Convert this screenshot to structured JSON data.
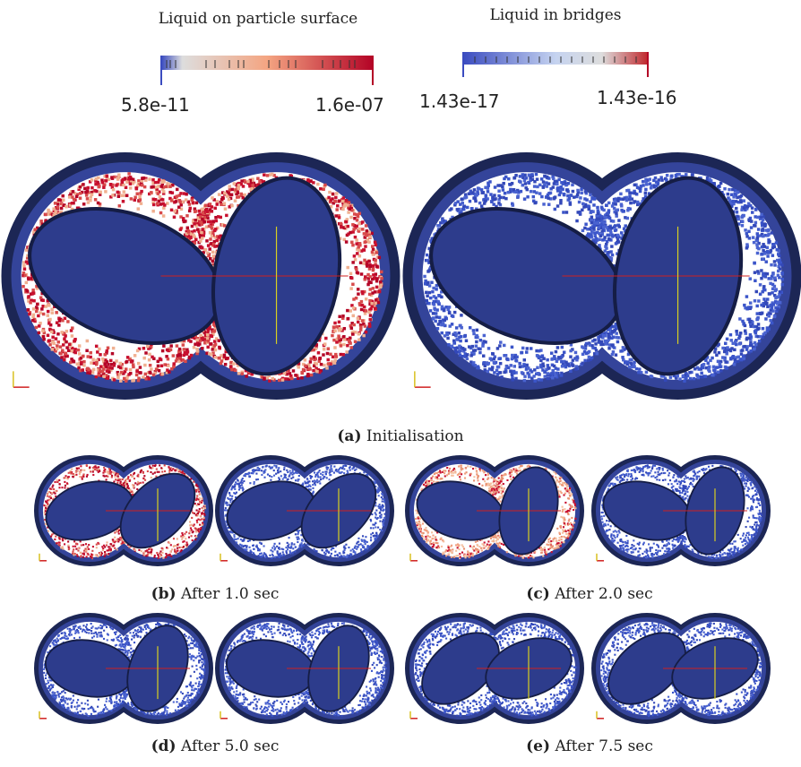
{
  "colorbars": [
    {
      "title": "Liquid on particle surface",
      "min": "5.8e-11",
      "max": "1.6e-07"
    },
    {
      "title": "Liquid in bridges",
      "min": "1.43e-17",
      "max": "1.43e-16"
    }
  ],
  "panels": [
    {
      "label": "(a)",
      "caption": "Initialisation"
    },
    {
      "label": "(b)",
      "caption": "After 1.0 sec"
    },
    {
      "label": "(c)",
      "caption": "After 2.0 sec"
    },
    {
      "label": "(d)",
      "caption": "After 5.0 sec"
    },
    {
      "label": "(e)",
      "caption": "After 7.5 sec"
    }
  ]
}
